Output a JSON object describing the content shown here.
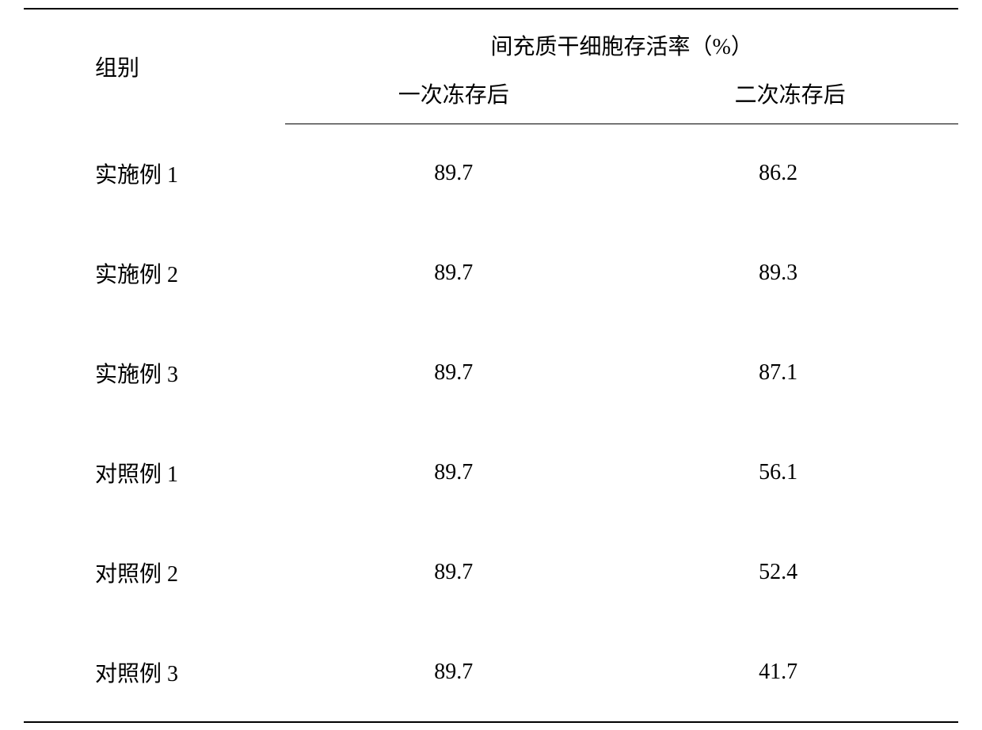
{
  "table": {
    "type": "table",
    "text_color": "#000000",
    "background_color": "#ffffff",
    "border_color": "#000000",
    "font_family": "SimSun",
    "font_size": 28,
    "columns": {
      "group_header": "组别",
      "super_header": "间充质干细胞存活率（%）",
      "sub_header_1": "一次冻存后",
      "sub_header_2": "二次冻存后"
    },
    "rows": [
      {
        "group": "实施例 1",
        "val1": "89.7",
        "val2": "86.2"
      },
      {
        "group": "实施例 2",
        "val1": "89.7",
        "val2": "89.3"
      },
      {
        "group": "实施例 3",
        "val1": "89.7",
        "val2": "87.1"
      },
      {
        "group": "对照例 1",
        "val1": "89.7",
        "val2": "56.1"
      },
      {
        "group": "对照例 2",
        "val1": "89.7",
        "val2": "52.4"
      },
      {
        "group": "对照例 3",
        "val1": "89.7",
        "val2": "41.7"
      }
    ]
  }
}
